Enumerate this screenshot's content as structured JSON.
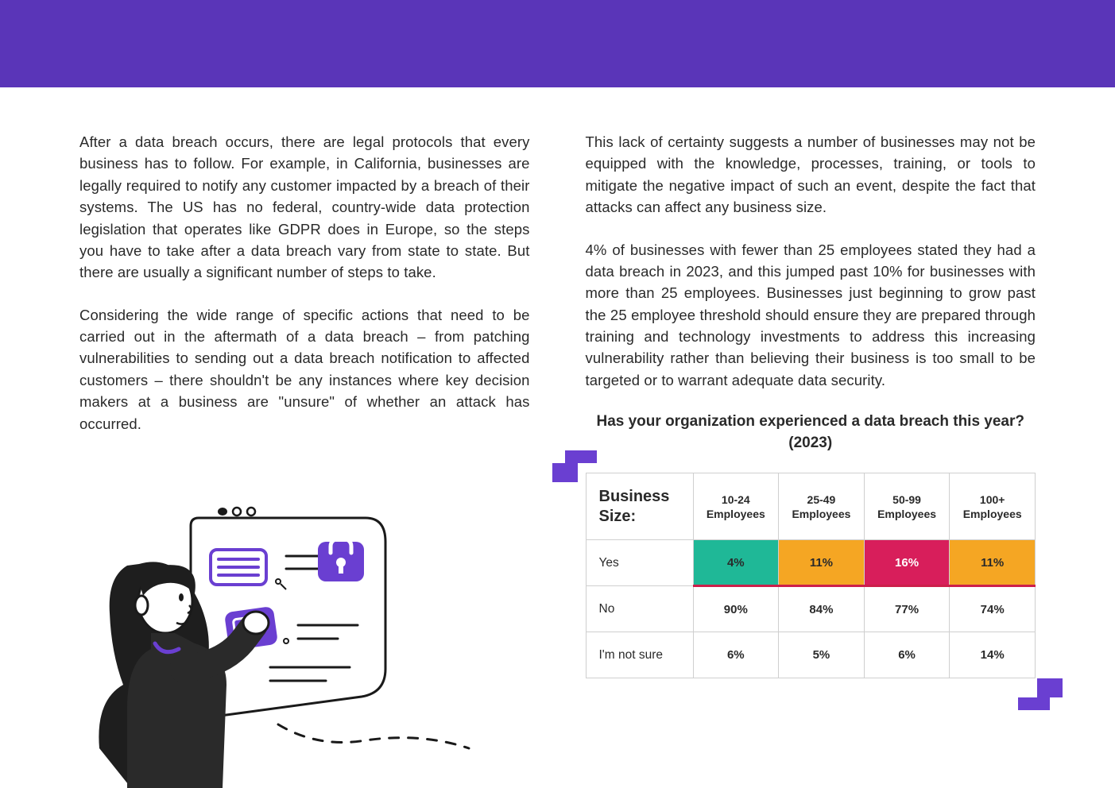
{
  "paragraphs_left": [
    "After a data breach occurs, there are legal protocols that every business has to follow. For example, in California, businesses are legally required to notify any customer impacted by a breach of their systems. The US has no federal, country-wide data protection legislation that operates like GDPR does in Europe, so the steps you have to take after a data breach vary from state to state. But there are usually a significant number of steps to take.",
    "Considering the wide range of specific actions that need to be carried out in the aftermath of a data breach – from patching vulnerabilities to sending out a data breach notification to affected customers – there shouldn't be any instances where key decision makers at a business are \"unsure\" of whether an attack has occurred."
  ],
  "paragraphs_right": [
    "This lack of certainty suggests a number of businesses may not be equipped with the knowledge, processes, training, or tools to mitigate the negative impact of such an event, despite the fact that attacks can affect any business size.",
    "4% of businesses with fewer than 25 employees stated they had a data breach in 2023, and this jumped past 10% for businesses with more than 25 employees. Businesses just beginning to grow past the 25 employee threshold should ensure they are prepared through training and technology investments to address this increasing vulnerability rather than believing their business is too small to be targeted or to warrant adequate data security."
  ],
  "table": {
    "title": "Has your organization experienced a data breach this year? (2023)",
    "row_header": "Business Size:",
    "columns": [
      "10-24 Employees",
      "25-49 Employees",
      "50-99 Employees",
      "100+ Employees"
    ],
    "rows": [
      {
        "label": "Yes",
        "values": [
          "4%",
          "11%",
          "16%",
          "11%"
        ],
        "bg": [
          "#1fb897",
          "#f5a623",
          "#d81e5b",
          "#f5a623"
        ]
      },
      {
        "label": "No",
        "values": [
          "90%",
          "84%",
          "77%",
          "74%"
        ],
        "bg": [
          "",
          "",
          "",
          ""
        ]
      },
      {
        "label": "I'm not sure",
        "values": [
          "6%",
          "5%",
          "6%",
          "14%"
        ],
        "bg": [
          "",
          "",
          "",
          ""
        ]
      }
    ],
    "accent_color": "#6a3fd1",
    "header_band_color": "#5a35b8",
    "underline_color": "#cc1f4a"
  }
}
